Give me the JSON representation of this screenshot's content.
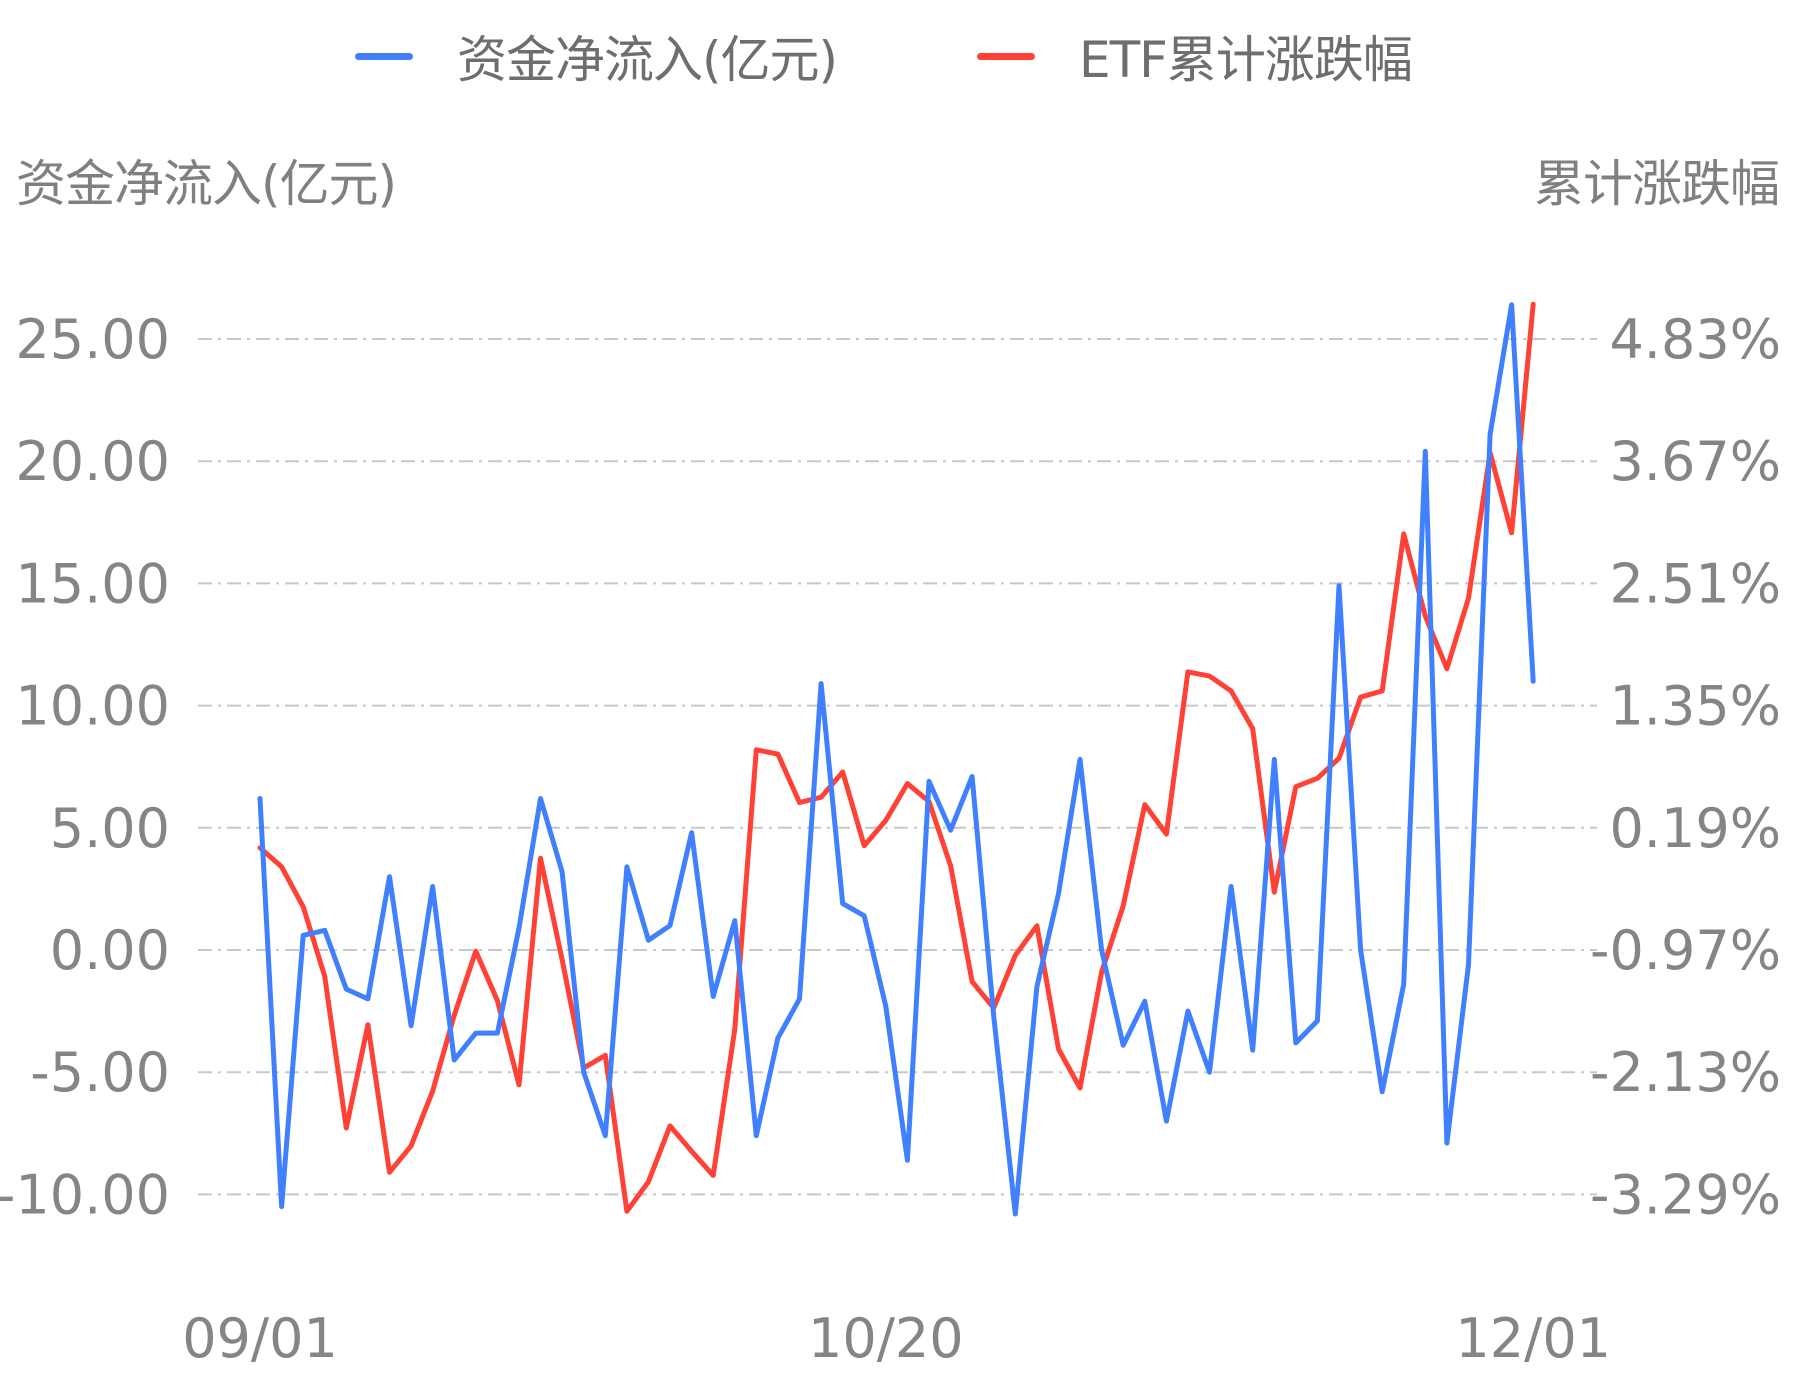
{
  "legend": {
    "items": [
      {
        "label": "资金净流入(亿元)",
        "color": "#4080ff"
      },
      {
        "label": "ETF累计涨跌幅",
        "color": "#ff4136"
      }
    ]
  },
  "axes": {
    "left_title": "资金净流入(亿元)",
    "right_title": "累计涨跌幅"
  },
  "colors": {
    "inflow": "#4080ff",
    "cumulative": "#ff4136",
    "grid": "#c8c8c8",
    "text": "#858585"
  },
  "chart_data": {
    "type": "line",
    "title": "",
    "xlabel": "",
    "ylabel": "资金净流入(亿元)",
    "ylabel_right": "累计涨跌幅",
    "x_tick_labels": [
      {
        "index": 0,
        "label": "09/01"
      },
      {
        "index": 29,
        "label": "10/20"
      },
      {
        "index": 59,
        "label": "12/01"
      }
    ],
    "y_left_ticks": [
      "25.00",
      "20.00",
      "15.00",
      "10.00",
      "5.00",
      "0.00",
      "-5.00",
      "-10.00"
    ],
    "y_left_values": [
      25,
      20,
      15,
      10,
      5,
      0,
      -5,
      -10
    ],
    "y_right_ticks": [
      "4.83%",
      "3.67%",
      "2.51%",
      "1.35%",
      "0.19%",
      "-0.97%",
      "-2.13%",
      "-3.29%"
    ],
    "y_right_values": [
      4.83,
      3.67,
      2.51,
      1.35,
      0.19,
      -0.97,
      -2.13,
      -3.29
    ],
    "ylim_left": [
      -10,
      25
    ],
    "ylim_right": [
      -3.29,
      4.83
    ],
    "grid": true,
    "legend_position": "top",
    "series": [
      {
        "name": "资金净流入(亿元)",
        "axis": "left",
        "values": [
          6.2,
          -10.5,
          0.6,
          0.8,
          -1.6,
          -2.0,
          3.0,
          -3.1,
          2.6,
          -4.5,
          -3.4,
          -3.4,
          0.9,
          6.2,
          3.2,
          -5.0,
          -7.6,
          3.4,
          0.4,
          1.0,
          4.8,
          -1.9,
          1.2,
          -7.6,
          -3.6,
          -2.0,
          10.9,
          1.9,
          1.4,
          -2.3,
          -8.6,
          6.9,
          4.9,
          7.1,
          -2.7,
          -10.8,
          -1.5,
          2.3,
          7.8,
          0.0,
          -3.9,
          -2.1,
          -7.0,
          -2.5,
          -5.0,
          2.6,
          -4.1,
          7.8,
          -3.8,
          -2.9,
          14.9,
          0.0,
          -5.8,
          -1.4,
          20.4,
          -7.9,
          -0.6,
          21.1,
          26.4,
          11.0
        ]
      },
      {
        "name": "ETF累计涨跌幅",
        "axis": "right",
        "unit": "%",
        "values": [
          0.0,
          -0.18,
          -0.56,
          -1.22,
          -2.66,
          -1.68,
          -3.08,
          -2.83,
          -2.31,
          -1.59,
          -0.98,
          -1.45,
          -2.25,
          -0.1,
          -1.06,
          -2.09,
          -1.97,
          -3.45,
          -3.17,
          -2.64,
          -2.88,
          -3.11,
          -1.72,
          0.93,
          0.89,
          0.43,
          0.48,
          0.72,
          0.02,
          0.26,
          0.61,
          0.44,
          -0.17,
          -1.27,
          -1.52,
          -1.02,
          -0.74,
          -1.91,
          -2.28,
          -1.18,
          -0.55,
          0.41,
          0.13,
          1.67,
          1.63,
          1.49,
          1.13,
          -0.42,
          0.58,
          0.66,
          0.85,
          1.43,
          1.49,
          2.98,
          2.2,
          1.7,
          2.37,
          3.75,
          2.99,
          5.16
        ]
      }
    ]
  }
}
